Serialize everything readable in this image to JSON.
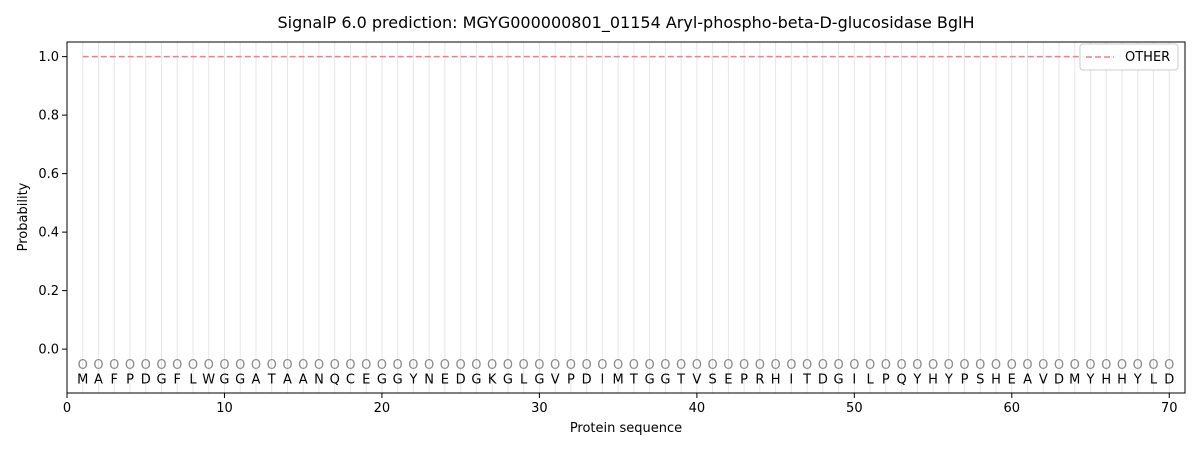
{
  "chart_data": {
    "type": "line",
    "title": "SignalP 6.0 prediction: MGYG000000801_01154 Aryl-phospho-beta-D-glucosidase BglH",
    "xlabel": "Protein sequence",
    "ylabel": "Probability",
    "xlim": [
      0,
      71
    ],
    "ylim": [
      -0.15,
      1.05
    ],
    "xticks": [
      0,
      10,
      20,
      30,
      40,
      50,
      60,
      70
    ],
    "yticks": [
      0.0,
      0.2,
      0.4,
      0.6,
      0.8,
      1.0
    ],
    "ytick_labels": [
      "0.0",
      "0.2",
      "0.4",
      "0.6",
      "0.8",
      "1.0"
    ],
    "grid": "vertical lines at each residue",
    "legend_position": "top-right",
    "series": [
      {
        "name": "OTHER",
        "style": "dashed",
        "color": "#f08080",
        "x_start": 1,
        "x_end": 70,
        "value": 1.0
      }
    ],
    "sequence": [
      "M",
      "A",
      "F",
      "P",
      "D",
      "G",
      "F",
      "L",
      "W",
      "G",
      "G",
      "A",
      "T",
      "A",
      "A",
      "N",
      "Q",
      "C",
      "E",
      "G",
      "G",
      "Y",
      "N",
      "E",
      "D",
      "G",
      "K",
      "G",
      "L",
      "G",
      "V",
      "P",
      "D",
      "I",
      "M",
      "T",
      "G",
      "G",
      "T",
      "V",
      "S",
      "E",
      "P",
      "R",
      "H",
      "I",
      "T",
      "D",
      "G",
      "I",
      "L",
      "P",
      "Q",
      "Y",
      "H",
      "Y",
      "P",
      "S",
      "H",
      "E",
      "A",
      "V",
      "D",
      "M",
      "Y",
      "H",
      "H",
      "Y",
      "L",
      "D"
    ],
    "state_labels": [
      "O",
      "O",
      "O",
      "O",
      "O",
      "O",
      "O",
      "O",
      "O",
      "O",
      "O",
      "O",
      "O",
      "O",
      "O",
      "O",
      "O",
      "O",
      "O",
      "O",
      "O",
      "O",
      "O",
      "O",
      "O",
      "O",
      "O",
      "O",
      "O",
      "O",
      "O",
      "O",
      "O",
      "O",
      "O",
      "O",
      "O",
      "O",
      "O",
      "O",
      "O",
      "O",
      "O",
      "O",
      "O",
      "O",
      "O",
      "O",
      "O",
      "O",
      "O",
      "O",
      "O",
      "O",
      "O",
      "O",
      "O",
      "O",
      "O",
      "O",
      "O",
      "O",
      "O",
      "O",
      "O",
      "O",
      "O",
      "O",
      "O",
      "O"
    ]
  }
}
